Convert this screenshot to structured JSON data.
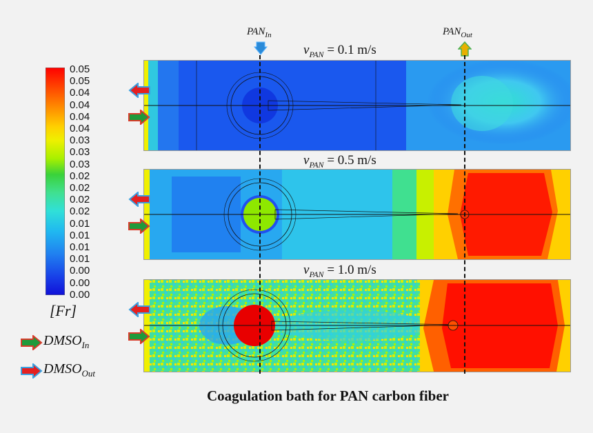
{
  "colorbar": {
    "ticks": [
      "0.05",
      "0.05",
      "0.04",
      "0.04",
      "0.04",
      "0.04",
      "0.03",
      "0.03",
      "0.03",
      "0.02",
      "0.02",
      "0.02",
      "0.02",
      "0.01",
      "0.01",
      "0.01",
      "0.01",
      "0.00",
      "0.00",
      "0.00"
    ],
    "unit_label": "[Fr]",
    "colors": [
      "#ff0000",
      "#ff3b00",
      "#ff6a00",
      "#ff9a00",
      "#ffc000",
      "#ffe200",
      "#f0f000",
      "#c8f000",
      "#8ee800",
      "#3ad23a",
      "#40e080",
      "#30e0b0",
      "#30e0e0",
      "#20c8f0",
      "#20a8f0",
      "#2088f0",
      "#1c64f0",
      "#1840e8",
      "#1010d8"
    ]
  },
  "legend": {
    "inlet_label": "DMSO",
    "inlet_sub": "In",
    "outlet_label": "DMSO",
    "outlet_sub": "Out"
  },
  "markers": {
    "pan_in_label": "PAN",
    "pan_in_sub": "In",
    "pan_out_label": "PAN",
    "pan_out_sub": "Out"
  },
  "panels": [
    {
      "v_var": "v",
      "v_sub": "PAN",
      "v_text": "= 0.1 m/s"
    },
    {
      "v_var": "v",
      "v_sub": "PAN",
      "v_text": "= 0.5 m/s"
    },
    {
      "v_var": "v",
      "v_sub": "PAN",
      "v_text": "= 1.0 m/s"
    }
  ],
  "caption": "Coagulation bath for PAN carbon fiber"
}
